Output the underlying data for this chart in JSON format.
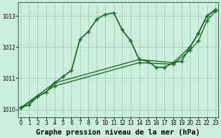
{
  "background_color": "#cceedd",
  "grid_color": "#aaccbb",
  "line_color": "#1a6b2a",
  "title": "Graphe pression niveau de la mer (hPa)",
  "xlim": [
    -0.3,
    23.3
  ],
  "ylim": [
    1009.75,
    1013.45
  ],
  "yticks": [
    1010,
    1011,
    1012,
    1013
  ],
  "xticks": [
    0,
    1,
    2,
    3,
    4,
    5,
    6,
    7,
    8,
    9,
    10,
    11,
    12,
    13,
    14,
    15,
    16,
    17,
    18,
    19,
    20,
    21,
    22,
    23
  ],
  "series": [
    {
      "x": [
        0,
        1,
        2,
        3,
        4,
        5,
        6,
        7,
        8,
        9,
        10,
        11,
        12,
        13,
        14,
        15,
        16,
        17,
        18,
        19,
        20,
        21,
        22,
        23
      ],
      "y": [
        1010.05,
        1010.15,
        1010.42,
        1010.55,
        1010.85,
        1011.05,
        1011.25,
        1012.25,
        1012.5,
        1012.9,
        1013.05,
        1013.1,
        1012.55,
        1012.2,
        1011.6,
        1011.55,
        1011.35,
        1011.35,
        1011.5,
        1011.55,
        1012.0,
        1012.45,
        1013.0,
        1013.2
      ],
      "linewidth": 1.3,
      "markersize": 4.5
    },
    {
      "x": [
        0,
        4,
        14,
        18,
        20,
        21,
        22,
        23
      ],
      "y": [
        1010.05,
        1010.85,
        1011.6,
        1011.5,
        1012.0,
        1012.45,
        1013.0,
        1013.2
      ],
      "linewidth": 1.0,
      "markersize": 4.0
    },
    {
      "x": [
        0,
        4,
        14,
        18,
        20,
        21,
        22,
        23
      ],
      "y": [
        1010.05,
        1010.75,
        1011.5,
        1011.45,
        1011.9,
        1012.2,
        1012.85,
        1013.15
      ],
      "linewidth": 1.0,
      "markersize": 4.0
    }
  ],
  "tick_fontsize": 5.5,
  "title_fontsize": 7.5,
  "title_fontweight": "bold"
}
